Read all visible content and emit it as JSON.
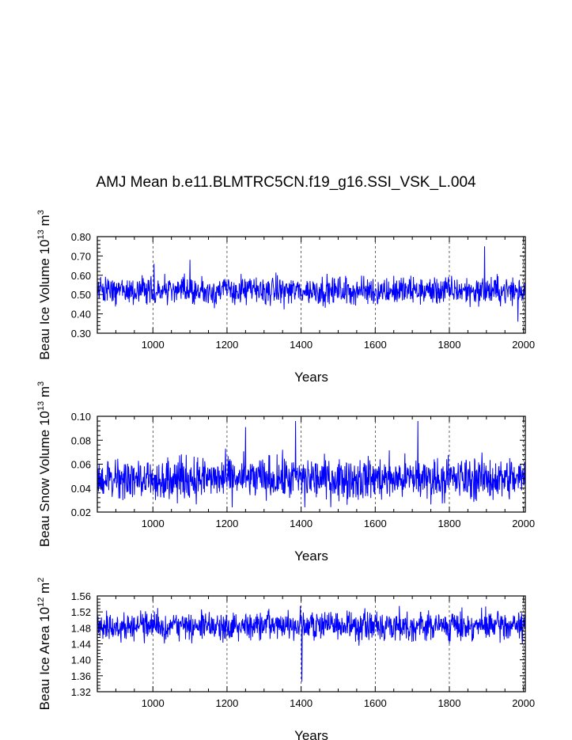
{
  "title": "AMJ Mean b.e11.BLMTRC5CN.f19_g16.SSI_VSK_L.004",
  "line_color": "#0000ff",
  "chart_data": [
    {
      "type": "line",
      "title": "AMJ Mean b.e11.BLMTRC5CN.f19_g16.SSI_VSK_L.004",
      "xlabel": "Years",
      "ylabel_main": "Beau Ice Volume 10",
      "ylabel_exp": "13",
      "ylabel_unit": " m",
      "ylabel_unit_exp": "3",
      "xlim": [
        850,
        2005
      ],
      "ylim": [
        0.3,
        0.8
      ],
      "xticks": [
        "1000",
        "1200",
        "1400",
        "1600",
        "1800",
        "2000"
      ],
      "yticks": [
        "0.30",
        "0.40",
        "0.50",
        "0.60",
        "0.70",
        "0.80"
      ],
      "mean": 0.52,
      "spread": 0.045,
      "min": 0.36,
      "max": 0.75,
      "peaks": [
        [
          1003,
          0.66
        ],
        [
          1100,
          0.68
        ],
        [
          1895,
          0.75
        ],
        [
          1985,
          0.36
        ]
      ],
      "series": [
        {
          "values_note": "annual AMJ mean, ~850-2005"
        }
      ]
    },
    {
      "type": "line",
      "xlabel": "Years",
      "ylabel_main": "Beau Snow Volume 10",
      "ylabel_exp": "13",
      "ylabel_unit": " m",
      "ylabel_unit_exp": "3",
      "xlim": [
        850,
        2005
      ],
      "ylim": [
        0.02,
        0.1
      ],
      "xticks": [
        "1000",
        "1200",
        "1400",
        "1600",
        "1800",
        "2000"
      ],
      "yticks": [
        "0.02",
        "0.04",
        "0.06",
        "0.08",
        "0.10"
      ],
      "mean": 0.048,
      "spread": 0.011,
      "min": 0.024,
      "max": 0.096,
      "peaks": [
        [
          1250,
          0.091
        ],
        [
          1385,
          0.096
        ],
        [
          1715,
          0.096
        ],
        [
          1410,
          0.024
        ]
      ],
      "series": [
        {
          "values_note": "annual AMJ mean, ~850-2005"
        }
      ]
    },
    {
      "type": "line",
      "xlabel": "Years",
      "ylabel_main": "Beau Ice Area 10",
      "ylabel_exp": "12",
      "ylabel_unit": " m",
      "ylabel_unit_exp": "2",
      "xlim": [
        850,
        2005
      ],
      "ylim": [
        1.32,
        1.56
      ],
      "xticks": [
        "1000",
        "1200",
        "1400",
        "1600",
        "1800",
        "2000"
      ],
      "yticks": [
        "1.32",
        "1.36",
        "1.40",
        "1.44",
        "1.48",
        "1.52",
        "1.56"
      ],
      "mean": 1.485,
      "spread": 0.022,
      "min": 1.345,
      "max": 1.535,
      "peaks": [
        [
          1402,
          1.345
        ],
        [
          1398,
          1.535
        ],
        [
          1665,
          1.535
        ]
      ],
      "series": [
        {
          "values_note": "annual AMJ mean, ~850-2005"
        }
      ]
    }
  ]
}
